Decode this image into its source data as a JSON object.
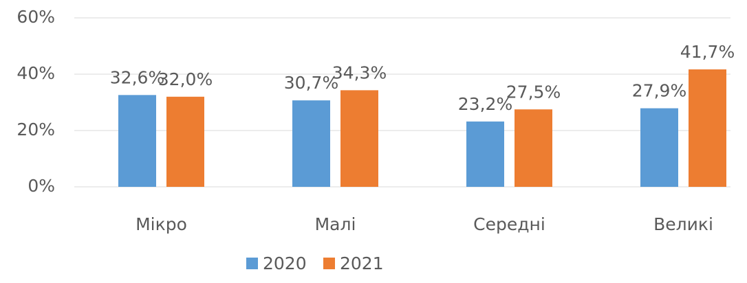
{
  "chart_data": {
    "type": "bar",
    "categories": [
      "Мікро",
      "Малі",
      "Середні",
      "Великі"
    ],
    "series": [
      {
        "name": "2020",
        "color": "#5b9bd5",
        "values": [
          32.6,
          30.7,
          23.2,
          27.9
        ],
        "value_labels": [
          "32,6%",
          "30,7%",
          "23,2%",
          "27,9%"
        ]
      },
      {
        "name": "2021",
        "color": "#ed7d31",
        "values": [
          32.0,
          34.3,
          27.5,
          41.7
        ],
        "value_labels": [
          "32,0%",
          "34,3%",
          "27,5%",
          "41,7%"
        ]
      }
    ],
    "ylim": [
      0,
      60
    ],
    "yticks": [
      {
        "value": 0,
        "label": "0%"
      },
      {
        "value": 20,
        "label": "20%"
      },
      {
        "value": 40,
        "label": "40%"
      },
      {
        "value": 60,
        "label": "60%"
      }
    ],
    "grid": true,
    "legend": "bottom"
  }
}
